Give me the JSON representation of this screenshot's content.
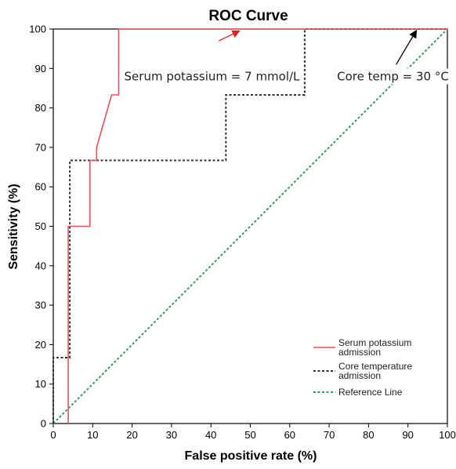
{
  "chart_data": {
    "type": "line",
    "title": "ROC Curve",
    "xlabel": "False positive rate (%)",
    "ylabel": "Sensitivity (%)",
    "xlim": [
      0,
      100
    ],
    "ylim": [
      0,
      100
    ],
    "xticks": [
      "0",
      "10",
      "20",
      "30",
      "40",
      "50",
      "60",
      "70",
      "80",
      "90",
      "100"
    ],
    "yticks": [
      "0",
      "10",
      "20",
      "30",
      "40",
      "50",
      "60",
      "70",
      "80",
      "90",
      "100"
    ],
    "grid": false,
    "legend_position": "bottom-right",
    "series": [
      {
        "name": "Serum potassium admission",
        "color": "#e8505b",
        "style": "solid",
        "x": [
          3.8,
          3.8,
          9.3,
          9.3,
          11,
          11,
          14.8,
          14.8,
          16.6,
          16.6,
          100
        ],
        "y": [
          0,
          50,
          50,
          66.7,
          66.7,
          70,
          83.3,
          83.3,
          83.3,
          100,
          100
        ]
      },
      {
        "name": "Core temperature admission",
        "color": "#333333",
        "style": "dotted",
        "x": [
          0,
          0,
          4.2,
          4.2,
          43.8,
          43.8,
          63.8,
          63.8,
          100
        ],
        "y": [
          0,
          16.7,
          16.7,
          66.7,
          66.7,
          83.3,
          83.3,
          100,
          100
        ]
      },
      {
        "name": "Reference Line",
        "color": "#2ca05a",
        "style": "dotted",
        "x": [
          0,
          100
        ],
        "y": [
          0,
          100
        ]
      }
    ],
    "annotations": [
      {
        "text": "Serum potassium = 7 mmol/L",
        "color": "#e02020",
        "text_at": [
          18,
          88
        ],
        "arrow_from": [
          42,
          97
        ],
        "arrow_to": [
          47,
          100
        ]
      },
      {
        "text": "Core temp = 30 °C",
        "color": "#000000",
        "text_at": [
          72,
          88
        ],
        "arrow_from": [
          87,
          91
        ],
        "arrow_to": [
          92,
          100
        ]
      }
    ]
  }
}
